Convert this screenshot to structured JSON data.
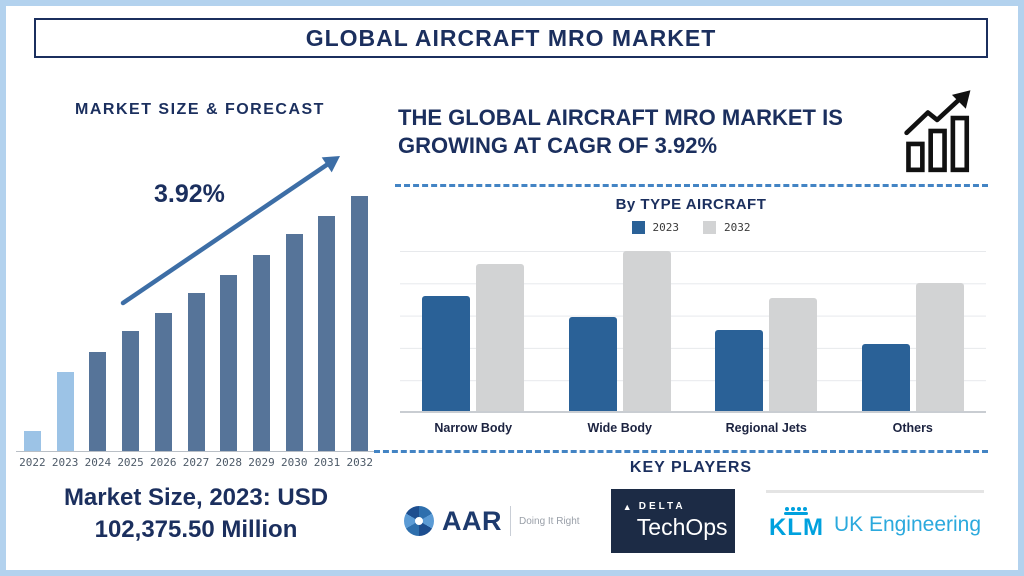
{
  "title": "GLOBAL AIRCRAFT MRO MARKET",
  "theme": {
    "navy": "#1b2f5e",
    "frame": "#b3d2ee",
    "dash": "#4384c4",
    "arrow": "#3d6ea6",
    "bar-light": "#9cc3e6",
    "bar-slate": "#567499",
    "bar-blue-2023": "#2a6197",
    "bar-gray-2032": "#d2d3d4",
    "aar-navy": "#1d3a6d",
    "delta-bg": "#1c2b45",
    "klm-blue": "#00a1de"
  },
  "icons": {
    "growth": "bar-chart-growth-icon",
    "aar_mark": "aperture-pinwheel-icon",
    "delta_mark": "triangle-icon",
    "klm_mark": "crown-icon"
  },
  "left_panel": {
    "heading": "MARKET SIZE & FORECAST",
    "market_size_line1": "Market Size, 2023: USD",
    "market_size_line2": "102,375.50 Million"
  },
  "right_panel": {
    "heading_line1": "THE GLOBAL AIRCRAFT MRO MARKET IS",
    "heading_line2": "GROWING AT CAGR OF 3.92%",
    "key_players_heading": "KEY PLAYERS",
    "logos": {
      "aar": {
        "name": "AAR",
        "tagline": "Doing It Right"
      },
      "delta": {
        "brand": "DELTA",
        "division": "TechOps"
      },
      "klm": {
        "brand": "KLM",
        "suffix": "UK Engineering"
      }
    }
  },
  "chart_data": [
    {
      "type": "bar",
      "title": "MARKET SIZE & FORECAST",
      "categories": [
        "2022",
        "2023",
        "2024",
        "2025",
        "2026",
        "2027",
        "2028",
        "2029",
        "2030",
        "2031",
        "2032"
      ],
      "values": [
        8,
        31,
        39,
        47,
        54,
        62,
        69,
        77,
        85,
        92,
        100
      ],
      "ylim": [
        0,
        100
      ],
      "unit": "relative index estimated from bar heights (2032 = 100)",
      "annotation": "3.92%",
      "highlight_categories": [
        "2022",
        "2023"
      ],
      "note": "Market Size, 2023: USD 102,375.50 Million",
      "grid": false,
      "legend": "none"
    },
    {
      "type": "bar",
      "title": "By TYPE AIRCRAFT",
      "categories": [
        "Narrow Body",
        "Wide Body",
        "Regional Jets",
        "Others"
      ],
      "series": [
        {
          "name": "2023",
          "values": [
            73,
            60,
            52,
            43
          ]
        },
        {
          "name": "2032",
          "values": [
            93,
            101,
            72,
            81
          ]
        }
      ],
      "ylim": [
        0,
        108
      ],
      "unit": "relative index estimated from bar heights",
      "grid": true,
      "legend_position": "top"
    }
  ]
}
